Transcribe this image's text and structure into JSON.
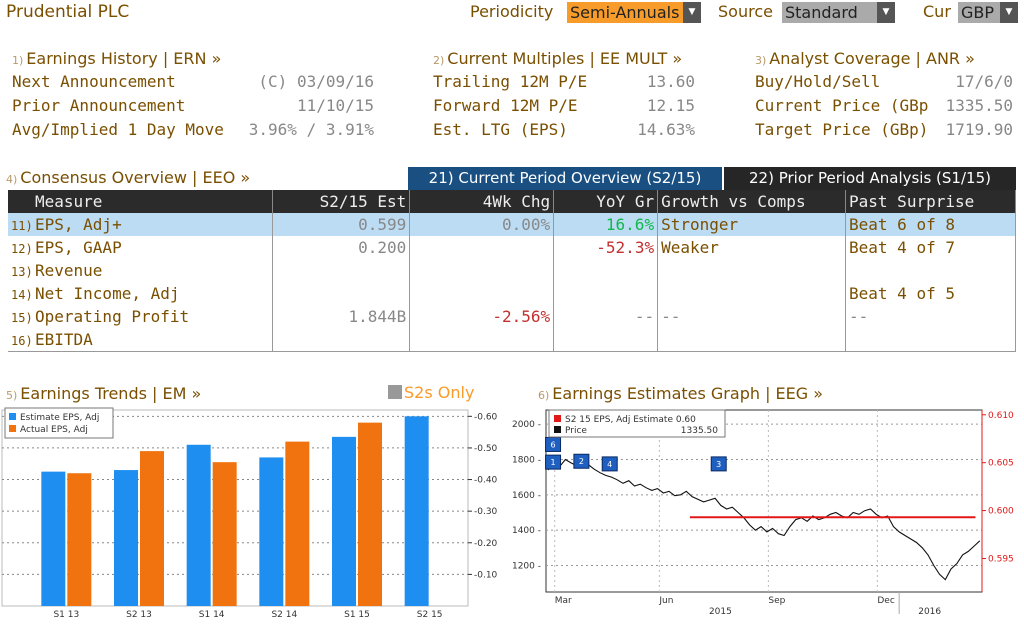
{
  "topbar": {
    "security": "Prudential PLC",
    "periodicity_label": "Periodicity",
    "periodicity_value": "Semi-Annuals",
    "source_label": "Source",
    "source_value": "Standard",
    "currency_label": "Cur",
    "currency_value": "GBP",
    "accent": "#f79c2a"
  },
  "earnings_history": {
    "num": "1)",
    "title": "Earnings History | ERN »",
    "rows": [
      {
        "label": "Next Announcement",
        "value": "(C)  03/09/16"
      },
      {
        "label": "Prior Announcement",
        "value": "11/10/15"
      },
      {
        "label": "Avg/Implied 1 Day Move",
        "value": "3.96% / 3.91%"
      }
    ]
  },
  "current_multiples": {
    "num": "2)",
    "title": "Current Multiples | EE MULT »",
    "rows": [
      {
        "label": "Trailing 12M P/E",
        "value": "13.60"
      },
      {
        "label": "Forward 12M P/E",
        "value": "12.15"
      },
      {
        "label": "Est. LTG (EPS)",
        "value": "14.63%"
      }
    ]
  },
  "analyst_coverage": {
    "num": "3)",
    "title": "Analyst Coverage | ANR »",
    "rows": [
      {
        "label": "Buy/Hold/Sell",
        "value": "17/6/0"
      },
      {
        "label": "Current Price (GBp",
        "value": "1335.50"
      },
      {
        "label": "Target Price (GBp)",
        "value": "1719.90"
      }
    ]
  },
  "consensus": {
    "num": "4)",
    "title": "Consensus Overview | EEO »",
    "tab_current": "21) Current Period Overview (S2/15)",
    "tab_prior": "22) Prior Period Analysis (S1/15)",
    "headers": [
      "Measure",
      "S2/15 Est",
      "4Wk Chg",
      "YoY Gr",
      "Growth vs Comps",
      "Past Surprise"
    ],
    "rows": [
      {
        "num": "11)",
        "measure": "EPS, Adj+",
        "est": "0.599",
        "chg": "0.00%",
        "yoy": "16.6%",
        "comps": "Stronger",
        "surprise": "Beat 6 of 8"
      },
      {
        "num": "12)",
        "measure": "EPS, GAAP",
        "est": "0.200",
        "chg": "",
        "yoy": "-52.3%",
        "comps": "Weaker",
        "surprise": "Beat 4 of 7"
      },
      {
        "num": "13)",
        "measure": "Revenue",
        "est": "",
        "chg": "",
        "yoy": "",
        "comps": "",
        "surprise": ""
      },
      {
        "num": "14)",
        "measure": "Net Income, Adj",
        "est": "",
        "chg": "",
        "yoy": "",
        "comps": "",
        "surprise": "Beat 4 of 5"
      },
      {
        "num": "15)",
        "measure": "Operating Profit",
        "est": "1.844B",
        "chg": "-2.56%",
        "yoy": "--",
        "comps": "--",
        "surprise": "--"
      },
      {
        "num": "16)",
        "measure": "EBITDA",
        "est": "",
        "chg": "",
        "yoy": "",
        "comps": "",
        "surprise": ""
      }
    ]
  },
  "earnings_trends": {
    "num": "5)",
    "title": "Earnings Trends | EM »",
    "filter_label": "S2s Only"
  },
  "estimates_graph": {
    "num": "6)",
    "title": "Earnings Estimates Graph | EEG »"
  },
  "chart_data": [
    {
      "type": "bar",
      "categories": [
        "S1 13",
        "S2 13",
        "S1 14",
        "S2 14",
        "S1 15",
        "S2 15"
      ],
      "series": [
        {
          "name": "Estimate EPS, Adj",
          "color": "#1e8ef0",
          "values": [
            0.425,
            0.43,
            0.51,
            0.47,
            0.535,
            0.6
          ]
        },
        {
          "name": "Actual EPS, Adj",
          "color": "#f0730f",
          "values": [
            0.42,
            0.49,
            0.455,
            0.52,
            0.58,
            null
          ]
        }
      ],
      "ylim": [
        0,
        0.62
      ],
      "yticks": [
        "0.10",
        "0.20",
        "0.30",
        "0.40",
        "0.50",
        "0.60"
      ],
      "legend": "top-left"
    },
    {
      "type": "line",
      "legend_items": [
        {
          "label": "S2 15 EPS, Adj Estimate 0.60",
          "color": "#e01818"
        },
        {
          "label": "Price",
          "value": "1335.50",
          "color": "#111111"
        }
      ],
      "left_ticks": [
        "1200",
        "1400",
        "1600",
        "1800",
        "2000"
      ],
      "right_ticks": [
        "0.595",
        "0.600",
        "0.605",
        "0.610"
      ],
      "x_ticks": [
        "Mar",
        "Jun",
        "Sep",
        "Dec"
      ],
      "x_years": [
        "2015",
        "2016"
      ],
      "left_ylim": [
        1050,
        2080
      ],
      "right_ylim": [
        0.5915,
        0.6105
      ],
      "estimate_line": {
        "value": 0.5993,
        "start": 0.33,
        "end": 0.985
      },
      "price": [
        1740,
        1790,
        1760,
        1800,
        1780,
        1765,
        1755,
        1770,
        1745,
        1725,
        1710,
        1700,
        1685,
        1665,
        1680,
        1650,
        1660,
        1640,
        1625,
        1635,
        1610,
        1620,
        1595,
        1600,
        1620,
        1590,
        1575,
        1560,
        1570,
        1580,
        1540,
        1520,
        1530,
        1500,
        1470,
        1430,
        1400,
        1420,
        1390,
        1410,
        1380,
        1370,
        1420,
        1460,
        1470,
        1450,
        1480,
        1460,
        1470,
        1490,
        1500,
        1480,
        1470,
        1500,
        1490,
        1510,
        1520,
        1490,
        1470,
        1480,
        1420,
        1390,
        1370,
        1350,
        1330,
        1300,
        1260,
        1200,
        1150,
        1120,
        1180,
        1210,
        1260,
        1280,
        1310,
        1340
      ],
      "markers": [
        {
          "label": "6",
          "x": 0.015,
          "v": 1885
        },
        {
          "label": "1",
          "x": 0.015,
          "v": 1785
        },
        {
          "label": "2",
          "x": 0.08,
          "v": 1790
        },
        {
          "label": "4",
          "x": 0.145,
          "v": 1775
        },
        {
          "label": "3",
          "x": 0.395,
          "v": 1775
        }
      ]
    }
  ]
}
